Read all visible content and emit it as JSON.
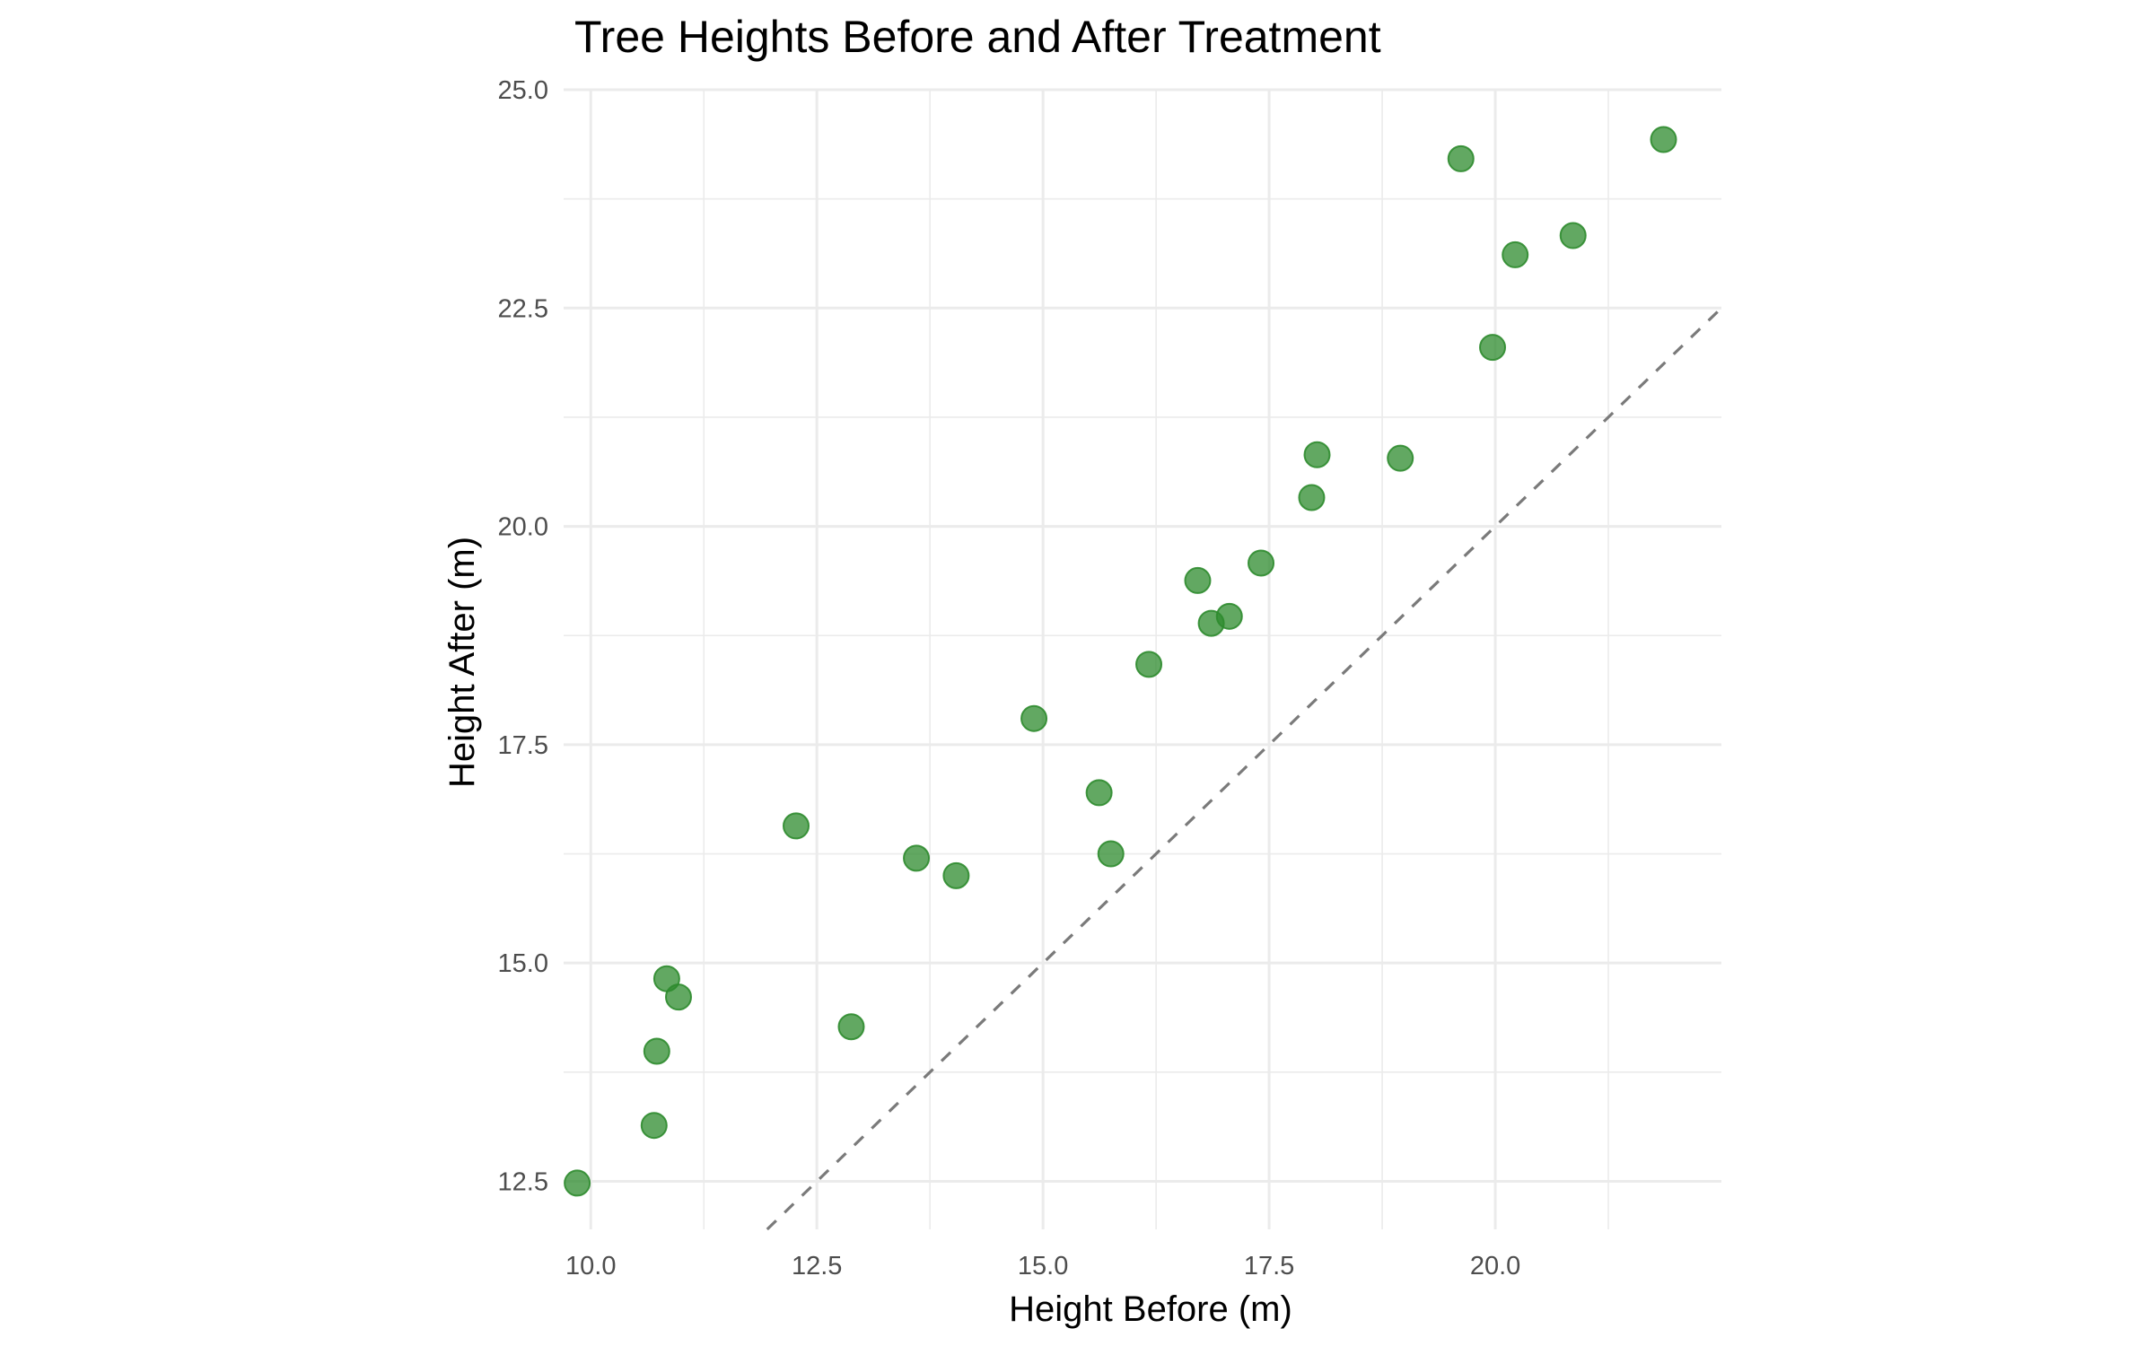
{
  "chart_data": {
    "type": "scatter",
    "title": "Tree Heights Before and After Treatment",
    "xlabel": "Height Before (m)",
    "ylabel": "Height After (m)",
    "xlim": [
      9.7,
      22.5
    ],
    "ylim": [
      11.95,
      25.0
    ],
    "x_ticks": [
      10.0,
      12.5,
      15.0,
      17.5,
      20.0
    ],
    "x_tick_labels": [
      "10.0",
      "12.5",
      "15.0",
      "17.5",
      "20.0"
    ],
    "x_minor_ticks": [
      11.25,
      13.75,
      16.25,
      18.75,
      21.25
    ],
    "y_ticks": [
      12.5,
      15.0,
      17.5,
      20.0,
      22.5,
      25.0
    ],
    "y_tick_labels": [
      "12.5",
      "15.0",
      "17.5",
      "20.0",
      "22.5",
      "25.0"
    ],
    "y_minor_ticks": [
      13.75,
      16.25,
      18.75,
      21.25,
      23.75
    ],
    "grid": true,
    "point_color": "#2e8b2e",
    "reference_line": {
      "type": "dashed",
      "slope": 1,
      "intercept": 0,
      "color": "#7a7a7a"
    },
    "series": [
      {
        "points": [
          {
            "x": 9.85,
            "y": 12.48
          },
          {
            "x": 10.7,
            "y": 13.14
          },
          {
            "x": 10.73,
            "y": 13.99
          },
          {
            "x": 10.84,
            "y": 14.82
          },
          {
            "x": 10.97,
            "y": 14.61
          },
          {
            "x": 12.27,
            "y": 16.57
          },
          {
            "x": 12.88,
            "y": 14.27
          },
          {
            "x": 13.6,
            "y": 16.2
          },
          {
            "x": 14.04,
            "y": 16.0
          },
          {
            "x": 14.9,
            "y": 17.8
          },
          {
            "x": 15.62,
            "y": 16.95
          },
          {
            "x": 15.75,
            "y": 16.25
          },
          {
            "x": 16.17,
            "y": 18.42
          },
          {
            "x": 16.71,
            "y": 19.38
          },
          {
            "x": 16.86,
            "y": 18.89
          },
          {
            "x": 17.06,
            "y": 18.97
          },
          {
            "x": 17.41,
            "y": 19.58
          },
          {
            "x": 17.97,
            "y": 20.33
          },
          {
            "x": 18.03,
            "y": 20.82
          },
          {
            "x": 18.95,
            "y": 20.78
          },
          {
            "x": 19.62,
            "y": 24.21
          },
          {
            "x": 19.97,
            "y": 22.05
          },
          {
            "x": 20.22,
            "y": 23.11
          },
          {
            "x": 20.86,
            "y": 23.33
          },
          {
            "x": 21.86,
            "y": 24.43
          }
        ]
      }
    ]
  }
}
